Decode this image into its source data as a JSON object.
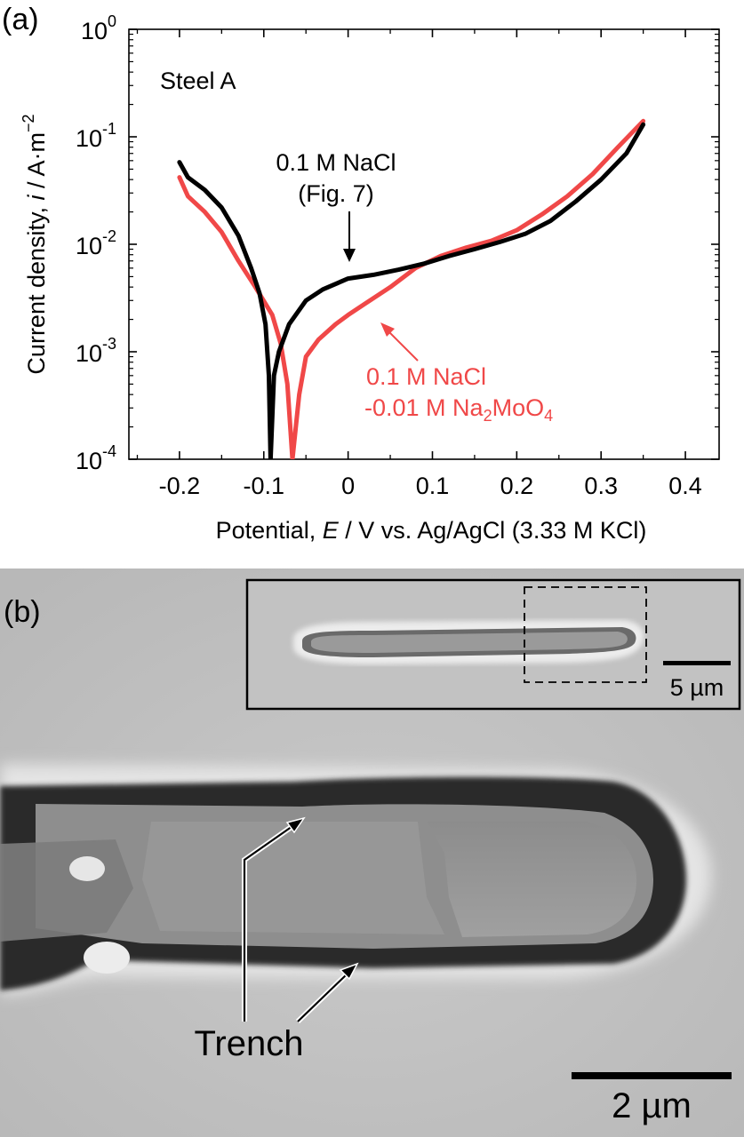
{
  "panel_a": {
    "panel_label": "(a)",
    "sample_label": "Steel A",
    "ylabel_main": "Current density, ",
    "ylabel_italic": "i",
    "ylabel_unit": " / A·m",
    "ylabel_exp": "−2",
    "xlabel_main": "Potential, ",
    "xlabel_italic": "E",
    "xlabel_unit": " / V vs. Ag/AgCl (3.33 M KCl)",
    "annotation_black_line1": "0.1 M NaCl",
    "annotation_black_line2": "(Fig. 7)",
    "annotation_red_line1": "0.1 M NaCl",
    "annotation_red_line2_pre": "-0.01 M Na",
    "annotation_red_sub1": "2",
    "annotation_red_mid": "MoO",
    "annotation_red_sub2": "4",
    "ytick_base": "10",
    "colors": {
      "black_series": "#000000",
      "red_series": "#f04848"
    }
  },
  "panel_b": {
    "panel_label": "(b)",
    "trench_label": "Trench",
    "scalebar_main": "2 µm",
    "scalebar_inset": "5 µm"
  },
  "chart_data": {
    "type": "line",
    "xlim": [
      -0.26,
      0.44
    ],
    "ylim": [
      0.0001,
      1
    ],
    "yscale": "log",
    "x_ticks": [
      -0.2,
      -0.1,
      0,
      0.1,
      0.2,
      0.3,
      0.4
    ],
    "x_tick_labels": [
      "-0.2",
      "-0.1",
      "0",
      "0.1",
      "0.2",
      "0.3",
      "0.4"
    ],
    "y_ticks": [
      0.0001,
      0.001,
      0.01,
      0.1,
      1
    ],
    "y_tick_exponents": [
      "-4",
      "-3",
      "-2",
      "-1",
      "0"
    ],
    "series": [
      {
        "name": "0.1 M NaCl (Fig. 7)",
        "color": "#000000",
        "points": [
          [
            -0.2,
            0.058
          ],
          [
            -0.19,
            0.042
          ],
          [
            -0.17,
            0.032
          ],
          [
            -0.15,
            0.022
          ],
          [
            -0.13,
            0.012
          ],
          [
            -0.115,
            0.006
          ],
          [
            -0.105,
            0.0035
          ],
          [
            -0.098,
            0.0018
          ],
          [
            -0.094,
            0.0006
          ],
          [
            -0.092,
            0.0001
          ],
          [
            -0.088,
            0.0006
          ],
          [
            -0.082,
            0.001
          ],
          [
            -0.07,
            0.0018
          ],
          [
            -0.05,
            0.003
          ],
          [
            -0.03,
            0.0038
          ],
          [
            0,
            0.0048
          ],
          [
            0.03,
            0.0052
          ],
          [
            0.06,
            0.0058
          ],
          [
            0.09,
            0.0066
          ],
          [
            0.12,
            0.0078
          ],
          [
            0.15,
            0.009
          ],
          [
            0.18,
            0.0105
          ],
          [
            0.21,
            0.0125
          ],
          [
            0.24,
            0.0165
          ],
          [
            0.27,
            0.025
          ],
          [
            0.3,
            0.04
          ],
          [
            0.33,
            0.07
          ],
          [
            0.35,
            0.13
          ]
        ]
      },
      {
        "name": "0.1 M NaCl -0.01 M Na2MoO4",
        "color": "#f04848",
        "points": [
          [
            -0.2,
            0.042
          ],
          [
            -0.19,
            0.028
          ],
          [
            -0.17,
            0.02
          ],
          [
            -0.15,
            0.013
          ],
          [
            -0.13,
            0.007
          ],
          [
            -0.11,
            0.004
          ],
          [
            -0.09,
            0.0022
          ],
          [
            -0.08,
            0.0012
          ],
          [
            -0.072,
            0.0005
          ],
          [
            -0.066,
            0.0001
          ],
          [
            -0.058,
            0.0004
          ],
          [
            -0.05,
            0.0009
          ],
          [
            -0.035,
            0.0013
          ],
          [
            -0.015,
            0.0018
          ],
          [
            0,
            0.0022
          ],
          [
            0.02,
            0.0028
          ],
          [
            0.05,
            0.004
          ],
          [
            0.08,
            0.006
          ],
          [
            0.11,
            0.0078
          ],
          [
            0.14,
            0.0093
          ],
          [
            0.17,
            0.0108
          ],
          [
            0.2,
            0.0135
          ],
          [
            0.23,
            0.019
          ],
          [
            0.26,
            0.028
          ],
          [
            0.29,
            0.045
          ],
          [
            0.32,
            0.08
          ],
          [
            0.35,
            0.14
          ]
        ]
      }
    ]
  }
}
